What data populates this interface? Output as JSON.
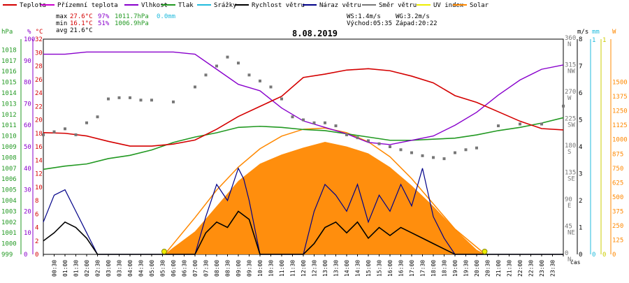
{
  "chart_data": {
    "type": "line",
    "title": "8.08.2019",
    "legend": [
      {
        "key": "teplota",
        "label": "Teplota",
        "color": "#d40000"
      },
      {
        "key": "prizemni",
        "label": "Přízemní teplota",
        "color": "#cc00cc"
      },
      {
        "key": "vlhkost",
        "label": "Vlhkost",
        "color": "#8800cc"
      },
      {
        "key": "tlak",
        "label": "Tlak",
        "color": "#229922"
      },
      {
        "key": "srazky",
        "label": "Srážky",
        "color": "#22bbdd"
      },
      {
        "key": "rychlost",
        "label": "Rychlost větru",
        "color": "#000000"
      },
      {
        "key": "naraz",
        "label": "Náraz větru",
        "color": "#000088"
      },
      {
        "key": "smer",
        "label": "Směr větru",
        "color": "#777777"
      },
      {
        "key": "uv",
        "label": "UV index",
        "color": "#eeee00"
      },
      {
        "key": "solar",
        "label": "Solar",
        "color": "#ff8800"
      }
    ],
    "stats": {
      "max_label": "max",
      "max_temp": "27.6°C",
      "max_hum": "97%",
      "max_press": "1011.7hPa",
      "max_rain": "0.0mm",
      "min_label": "min",
      "min_temp": "16.1°C",
      "min_hum": "51%",
      "min_press": "1006.9hPa",
      "avg_label": "avg",
      "avg_temp": "21.6°C",
      "ws": "WS:1.4m/s",
      "wg": "WG:3.2m/s",
      "sunrise": "Východ:05:35",
      "sunset": "Západ:20:22"
    },
    "axes": {
      "pressure": {
        "unit": "hPa",
        "range": [
          999,
          1019
        ],
        "ticks": [
          "1018",
          "1017",
          "1016",
          "1015",
          "1014",
          "1013",
          "1012",
          "1011",
          "1010",
          "1009",
          "1008",
          "1007",
          "1006",
          "1005",
          "1004",
          "1003",
          "1002",
          "1001",
          "1000",
          "999"
        ]
      },
      "humidity": {
        "unit": "%",
        "range": [
          0,
          100
        ],
        "ticks": [
          "100",
          "90",
          "80",
          "70",
          "60",
          "50",
          "40",
          "30",
          "20",
          "10",
          "0"
        ]
      },
      "temperature": {
        "unit": "°C",
        "range": [
          0,
          32
        ],
        "ticks": [
          "32",
          "30",
          "28",
          "26",
          "24",
          "22",
          "20",
          "18",
          "16",
          "14",
          "12",
          "10",
          "8",
          "6",
          "4",
          "2",
          "0"
        ]
      },
      "direction": {
        "ticks": [
          {
            "v": "360",
            "d": "N"
          },
          {
            "v": "315",
            "d": "NW"
          },
          {
            "v": "270",
            "d": "W"
          },
          {
            "v": "225",
            "d": "SW"
          },
          {
            "v": "180",
            "d": "S"
          },
          {
            "v": "135",
            "d": "SE"
          },
          {
            "v": "90",
            "d": "E"
          },
          {
            "v": "45",
            "d": "NE"
          },
          {
            "v": "0",
            "d": "N"
          }
        ]
      },
      "wind": {
        "unit": "m/s",
        "range": [
          0,
          8
        ],
        "ticks": [
          "8",
          "7",
          "6",
          "5",
          "4",
          "3",
          "2",
          "1",
          "0"
        ]
      },
      "rain": {
        "unit": "mm",
        "ticks": [
          "1",
          "0"
        ]
      },
      "uv": {
        "ticks": [
          "1",
          "0"
        ]
      },
      "solar": {
        "unit": "W",
        "range": [
          0,
          1875
        ],
        "ticks": [
          "1500",
          "1375",
          "1250",
          "1125",
          "1000",
          "875",
          "750",
          "625",
          "500",
          "375",
          "250",
          "125",
          "0"
        ]
      },
      "time_label": "čas",
      "time_ticks": [
        "00:30",
        "01:00",
        "01:30",
        "02:00",
        "02:30",
        "03:00",
        "03:30",
        "04:00",
        "04:30",
        "05:00",
        "05:30",
        "06:00",
        "06:30",
        "07:00",
        "07:30",
        "08:00",
        "08:30",
        "09:00",
        "09:30",
        "10:00",
        "10:30",
        "11:00",
        "11:30",
        "12:00",
        "12:30",
        "13:00",
        "13:30",
        "14:00",
        "14:30",
        "15:00",
        "15:30",
        "16:00",
        "16:30",
        "17:00",
        "17:30",
        "18:00",
        "18:30",
        "19:00",
        "19:30",
        "20:00",
        "20:30",
        "21:00",
        "21:30",
        "22:00",
        "22:30",
        "23:00",
        "23:30"
      ]
    },
    "series": [
      {
        "key": "teplota",
        "name": "Teplota",
        "unit": "°C",
        "x": [
          0,
          1,
          2,
          3,
          4,
          5,
          6,
          7,
          8,
          9,
          10,
          11,
          12,
          13,
          14,
          15,
          16,
          17,
          18,
          19,
          20,
          21,
          22,
          23,
          24
        ],
        "values": [
          18.1,
          18.0,
          17.6,
          16.8,
          16.1,
          16.1,
          16.4,
          17.0,
          18.6,
          20.5,
          22.0,
          23.5,
          26.3,
          26.8,
          27.4,
          27.6,
          27.3,
          26.5,
          25.5,
          23.6,
          22.6,
          21.2,
          19.8,
          18.7,
          18.5
        ]
      },
      {
        "key": "vlhkost",
        "name": "Vlhkost",
        "unit": "%",
        "x": [
          0,
          1,
          2,
          3,
          4,
          5,
          6,
          7,
          8,
          9,
          10,
          11,
          12,
          13,
          14,
          15,
          16,
          17,
          18,
          19,
          20,
          21,
          22,
          23,
          24
        ],
        "values": [
          93,
          93,
          94,
          94,
          94,
          94,
          94,
          93,
          86,
          79,
          76,
          68,
          62,
          59,
          56,
          52,
          51,
          53,
          55,
          60,
          66,
          74,
          81,
          86,
          88
        ]
      },
      {
        "key": "tlak",
        "name": "Tlak",
        "unit": "hPa",
        "x": [
          0,
          1,
          2,
          3,
          4,
          5,
          6,
          7,
          8,
          9,
          10,
          11,
          12,
          13,
          14,
          15,
          16,
          17,
          18,
          19,
          20,
          21,
          22,
          23,
          24
        ],
        "values": [
          1006.9,
          1007.2,
          1007.4,
          1007.9,
          1008.2,
          1008.7,
          1009.4,
          1009.9,
          1010.3,
          1010.8,
          1010.9,
          1010.8,
          1010.6,
          1010.5,
          1010.2,
          1009.9,
          1009.6,
          1009.6,
          1009.7,
          1009.8,
          1010.1,
          1010.5,
          1010.8,
          1011.2,
          1011.7
        ]
      },
      {
        "key": "rychlost",
        "name": "Rychlost větru",
        "unit": "m/s",
        "x": [
          0,
          0.5,
          1,
          1.5,
          2,
          2.5,
          3,
          4,
          5,
          6,
          7,
          7.5,
          8,
          8.5,
          9,
          9.5,
          10,
          11,
          12,
          12.5,
          13,
          13.5,
          14,
          14.5,
          15,
          15.5,
          16,
          16.5,
          17,
          17.5,
          18,
          18.5,
          19,
          20,
          21,
          22,
          23,
          24
        ],
        "values": [
          0.5,
          0.8,
          1.2,
          1.0,
          0.6,
          0,
          0,
          0,
          0,
          0,
          0,
          0.8,
          1.2,
          1.0,
          1.6,
          1.3,
          0,
          0,
          0,
          0.4,
          1.0,
          1.2,
          0.8,
          1.2,
          0.6,
          1.0,
          0.7,
          1.0,
          0.8,
          0.6,
          0.4,
          0.2,
          0,
          0,
          0,
          0,
          0,
          0
        ]
      },
      {
        "key": "naraz",
        "name": "Náraz větru",
        "unit": "m/s",
        "x": [
          0,
          0.5,
          1,
          1.5,
          2,
          2.5,
          3,
          4,
          5,
          6,
          7,
          7.5,
          8,
          8.5,
          9,
          9.25,
          9.5,
          10,
          11,
          12,
          12.5,
          13,
          13.5,
          14,
          14.5,
          15,
          15.5,
          16,
          16.5,
          17,
          17.5,
          18,
          18.5,
          19,
          20,
          21,
          22,
          23,
          24
        ],
        "values": [
          1.2,
          2.2,
          2.4,
          1.6,
          0.8,
          0,
          0,
          0,
          0,
          0,
          0,
          1.4,
          2.6,
          2.0,
          3.2,
          2.8,
          2.0,
          0,
          0,
          0,
          1.6,
          2.6,
          2.2,
          1.6,
          2.6,
          1.2,
          2.2,
          1.6,
          2.6,
          1.8,
          3.2,
          1.4,
          0.6,
          0,
          0,
          0,
          0,
          0,
          0
        ]
      },
      {
        "key": "smer",
        "name": "Směr větru",
        "unit": "°",
        "x": [
          0,
          0.5,
          1,
          1.5,
          2,
          2.5,
          3,
          3.5,
          4,
          4.5,
          5,
          6,
          7,
          7.5,
          8,
          8.5,
          9,
          9.5,
          10,
          10.5,
          11,
          11.5,
          12,
          12.5,
          13,
          13.5,
          14,
          14.5,
          15,
          15.5,
          16,
          16.5,
          17,
          17.5,
          18,
          18.5,
          19,
          19.5,
          20,
          21,
          22,
          23,
          24
        ],
        "values": [
          200,
          205,
          210,
          200,
          220,
          230,
          260,
          262,
          262,
          258,
          258,
          255,
          280,
          300,
          315,
          330,
          320,
          300,
          290,
          280,
          260,
          230,
          225,
          220,
          220,
          215,
          200,
          195,
          190,
          185,
          180,
          175,
          170,
          165,
          162,
          160,
          170,
          175,
          178,
          215,
          218,
          218,
          248
        ],
        "note_type": "scatter"
      },
      {
        "key": "solar",
        "name": "Solar",
        "unit": "W",
        "x": [
          5.6,
          6,
          7,
          8,
          9,
          10,
          11,
          12,
          13,
          14,
          15,
          16,
          17,
          18,
          19,
          20,
          20.4
        ],
        "values": [
          0,
          60,
          200,
          420,
          640,
          790,
          870,
          930,
          980,
          940,
          880,
          760,
          600,
          420,
          220,
          40,
          0
        ],
        "note_type": "area"
      }
    ],
    "solar_theoretical": {
      "x": [
        5.6,
        7,
        8,
        9,
        10,
        11,
        12,
        13,
        14,
        15,
        16,
        17,
        18,
        19,
        20.4
      ],
      "values": [
        0,
        320,
        560,
        760,
        920,
        1030,
        1090,
        1100,
        1060,
        980,
        850,
        660,
        440,
        220,
        0
      ]
    }
  }
}
